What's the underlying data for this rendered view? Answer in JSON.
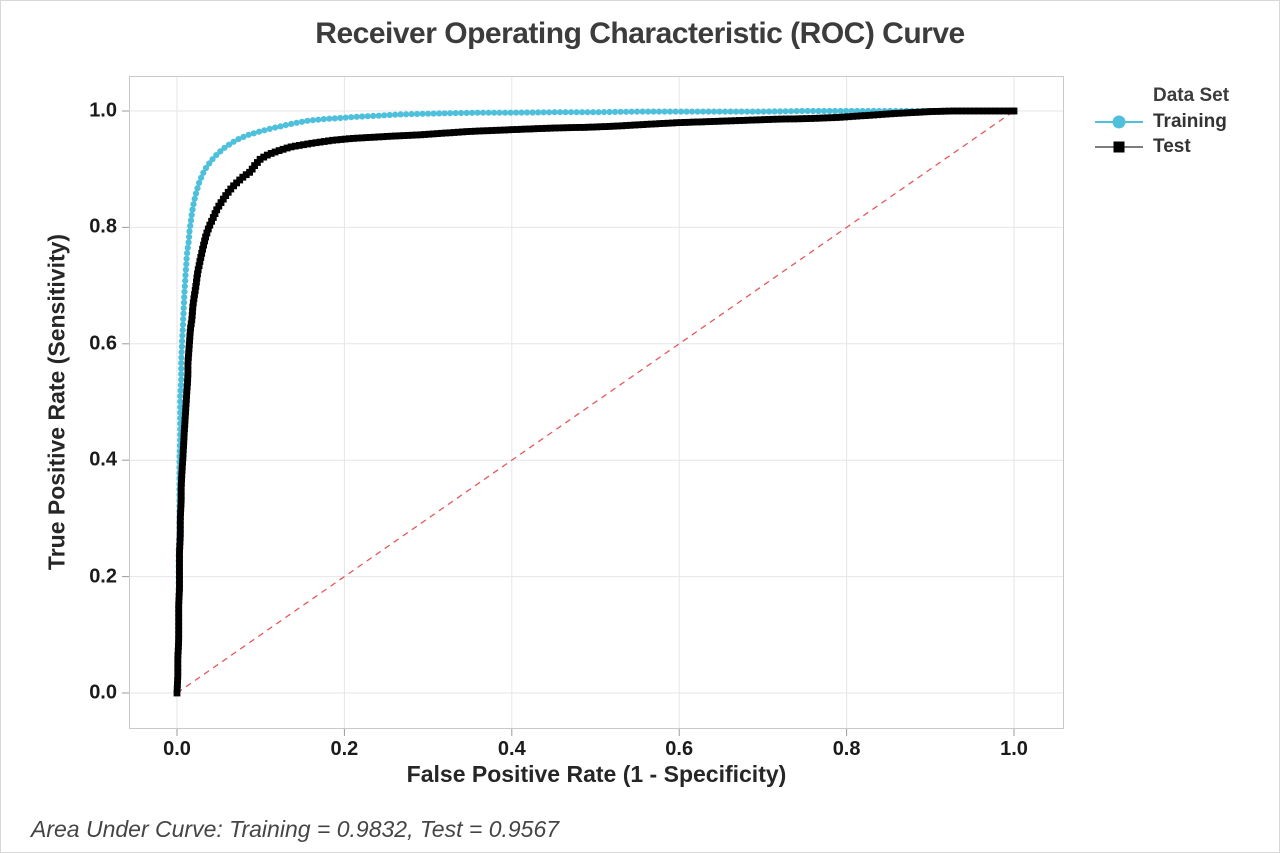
{
  "chart_data": {
    "type": "line",
    "title": "Receiver Operating Characteristic (ROC) Curve",
    "xlabel": "False Positive Rate (1 - Specificity)",
    "ylabel": "True Positive Rate (Sensitivity)",
    "xlim": [
      0.0,
      1.0
    ],
    "ylim": [
      0.0,
      1.0
    ],
    "xticks": [
      "0.0",
      "0.2",
      "0.4",
      "0.6",
      "0.8",
      "1.0"
    ],
    "yticks": [
      "0.0",
      "0.2",
      "0.4",
      "0.6",
      "0.8",
      "1.0"
    ],
    "grid": true,
    "colors": {
      "training": "#4fc0dc",
      "test": "#000000",
      "diagonal": "#e4595c",
      "gridline": "#e6e6e6",
      "frame": "#c9c9c9",
      "tick": "#9b9b9b"
    },
    "legend": {
      "title": "Data Set",
      "position": "right",
      "entries": [
        {
          "label": "Training",
          "marker": "circle",
          "color": "#4fc0dc"
        },
        {
          "label": "Test",
          "marker": "square",
          "color": "#000000"
        }
      ]
    },
    "diagonal": {
      "from": [
        0,
        0
      ],
      "to": [
        1,
        1
      ],
      "style": "dashed",
      "color": "#e4595c"
    },
    "auc": {
      "training": 0.9832,
      "test": 0.9567
    },
    "footnote": "Area Under Curve: Training = 0.9832, Test = 0.9567",
    "series": [
      {
        "name": "Training",
        "marker": "circle",
        "color": "#4fc0dc",
        "points": [
          [
            0.0,
            0.0
          ],
          [
            0.001,
            0.04
          ],
          [
            0.001,
            0.08
          ],
          [
            0.002,
            0.12
          ],
          [
            0.002,
            0.16
          ],
          [
            0.002,
            0.2
          ],
          [
            0.002,
            0.24
          ],
          [
            0.003,
            0.28
          ],
          [
            0.003,
            0.32
          ],
          [
            0.003,
            0.36
          ],
          [
            0.003,
            0.4
          ],
          [
            0.004,
            0.44
          ],
          [
            0.004,
            0.48
          ],
          [
            0.004,
            0.51
          ],
          [
            0.005,
            0.54
          ],
          [
            0.005,
            0.57
          ],
          [
            0.006,
            0.6
          ],
          [
            0.007,
            0.63
          ],
          [
            0.008,
            0.66
          ],
          [
            0.009,
            0.69
          ],
          [
            0.01,
            0.715
          ],
          [
            0.011,
            0.735
          ],
          [
            0.012,
            0.755
          ],
          [
            0.014,
            0.775
          ],
          [
            0.015,
            0.795
          ],
          [
            0.017,
            0.815
          ],
          [
            0.019,
            0.835
          ],
          [
            0.022,
            0.855
          ],
          [
            0.026,
            0.875
          ],
          [
            0.03,
            0.89
          ],
          [
            0.035,
            0.903
          ],
          [
            0.041,
            0.915
          ],
          [
            0.048,
            0.926
          ],
          [
            0.056,
            0.936
          ],
          [
            0.065,
            0.945
          ],
          [
            0.075,
            0.953
          ],
          [
            0.085,
            0.959
          ],
          [
            0.097,
            0.964
          ],
          [
            0.11,
            0.969
          ],
          [
            0.125,
            0.974
          ],
          [
            0.14,
            0.979
          ],
          [
            0.155,
            0.983
          ],
          [
            0.175,
            0.986
          ],
          [
            0.195,
            0.988
          ],
          [
            0.215,
            0.99
          ],
          [
            0.24,
            0.992
          ],
          [
            0.265,
            0.994
          ],
          [
            0.29,
            0.995
          ],
          [
            0.32,
            0.996
          ],
          [
            0.36,
            0.997
          ],
          [
            0.4,
            0.997
          ],
          [
            0.45,
            0.998
          ],
          [
            0.5,
            0.998
          ],
          [
            0.55,
            0.999
          ],
          [
            0.6,
            0.999
          ],
          [
            0.65,
            0.999
          ],
          [
            0.7,
            0.999
          ],
          [
            0.75,
            1.0
          ],
          [
            0.8,
            1.0
          ],
          [
            0.85,
            1.0
          ],
          [
            0.893,
            1.0
          ],
          [
            1.0,
            1.0
          ]
        ]
      },
      {
        "name": "Test",
        "marker": "square",
        "color": "#000000",
        "points": [
          [
            0.0,
            0.0
          ],
          [
            0.001,
            0.03
          ],
          [
            0.001,
            0.06
          ],
          [
            0.002,
            0.09
          ],
          [
            0.002,
            0.12
          ],
          [
            0.002,
            0.15
          ],
          [
            0.003,
            0.18
          ],
          [
            0.003,
            0.21
          ],
          [
            0.003,
            0.24
          ],
          [
            0.004,
            0.27
          ],
          [
            0.004,
            0.3
          ],
          [
            0.005,
            0.33
          ],
          [
            0.005,
            0.355
          ],
          [
            0.006,
            0.38
          ],
          [
            0.007,
            0.405
          ],
          [
            0.008,
            0.43
          ],
          [
            0.009,
            0.455
          ],
          [
            0.01,
            0.478
          ],
          [
            0.011,
            0.5
          ],
          [
            0.012,
            0.522
          ],
          [
            0.013,
            0.545
          ],
          [
            0.013,
            0.565
          ],
          [
            0.014,
            0.585
          ],
          [
            0.015,
            0.605
          ],
          [
            0.016,
            0.625
          ],
          [
            0.018,
            0.645
          ],
          [
            0.019,
            0.665
          ],
          [
            0.021,
            0.685
          ],
          [
            0.023,
            0.705
          ],
          [
            0.025,
            0.725
          ],
          [
            0.028,
            0.745
          ],
          [
            0.031,
            0.765
          ],
          [
            0.034,
            0.783
          ],
          [
            0.038,
            0.8
          ],
          [
            0.043,
            0.816
          ],
          [
            0.048,
            0.832
          ],
          [
            0.054,
            0.846
          ],
          [
            0.06,
            0.858
          ],
          [
            0.066,
            0.869
          ],
          [
            0.073,
            0.879
          ],
          [
            0.08,
            0.888
          ],
          [
            0.088,
            0.896
          ],
          [
            0.092,
            0.905
          ],
          [
            0.1,
            0.918
          ],
          [
            0.11,
            0.926
          ],
          [
            0.122,
            0.932
          ],
          [
            0.135,
            0.938
          ],
          [
            0.15,
            0.942
          ],
          [
            0.168,
            0.946
          ],
          [
            0.188,
            0.95
          ],
          [
            0.21,
            0.953
          ],
          [
            0.235,
            0.955
          ],
          [
            0.26,
            0.957
          ],
          [
            0.29,
            0.959
          ],
          [
            0.32,
            0.962
          ],
          [
            0.35,
            0.965
          ],
          [
            0.385,
            0.967
          ],
          [
            0.42,
            0.969
          ],
          [
            0.455,
            0.971
          ],
          [
            0.49,
            0.972
          ],
          [
            0.525,
            0.974
          ],
          [
            0.56,
            0.977
          ],
          [
            0.6,
            0.98
          ],
          [
            0.64,
            0.982
          ],
          [
            0.68,
            0.984
          ],
          [
            0.72,
            0.986
          ],
          [
            0.755,
            0.987
          ],
          [
            0.79,
            0.989
          ],
          [
            0.82,
            0.992
          ],
          [
            0.85,
            0.995
          ],
          [
            0.875,
            0.997
          ],
          [
            0.9,
            0.999
          ],
          [
            0.93,
            1.0
          ],
          [
            1.0,
            1.0
          ]
        ]
      }
    ]
  }
}
